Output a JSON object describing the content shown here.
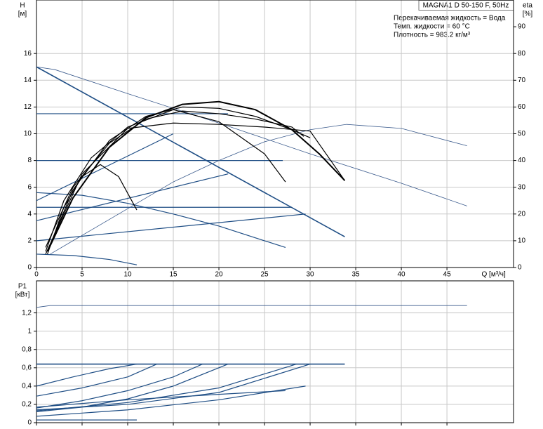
{
  "header": {
    "title": "MAGNA1 D 50-150 F, 50Hz",
    "notes": [
      "Перекачиваемая жидкость = Вода",
      "Темп. жидкости = 60 °C",
      "Плотность = 983.2 кг/м³"
    ]
  },
  "chart_data": [
    {
      "type": "line",
      "y_label": "H",
      "y_unit": "[м]",
      "y2_label": "eta",
      "y2_unit": "[%]",
      "x_label": "Q [м³/ч]",
      "grid": true,
      "xlim": [
        0,
        52.3
      ],
      "xticks": [
        0,
        5,
        10,
        15,
        20,
        25,
        30,
        35,
        40,
        45
      ],
      "ylim": [
        0,
        20
      ],
      "yticks": [
        0,
        2,
        4,
        6,
        8,
        10,
        12,
        14,
        16
      ],
      "y2lim": [
        0,
        100
      ],
      "y2ticks": [
        0,
        10,
        20,
        30,
        40,
        50,
        60,
        70,
        80,
        90
      ],
      "series": [
        {
          "color": "#1f4e85",
          "width": 1.6,
          "x": [
            0,
            33.8
          ],
          "values": [
            15,
            2.3
          ]
        },
        {
          "color": "#1f4e85",
          "width": 1.2,
          "x": [
            0,
            21
          ],
          "values": [
            11.5,
            11.5
          ]
        },
        {
          "color": "#1f4e85",
          "width": 1.2,
          "x": [
            0,
            27
          ],
          "values": [
            8,
            8
          ]
        },
        {
          "color": "#1f4e85",
          "width": 1.2,
          "x": [
            0,
            28
          ],
          "values": [
            4.5,
            4.5
          ]
        },
        {
          "color": "#1f4e85",
          "width": 1.2,
          "x": [
            0,
            15
          ],
          "values": [
            5,
            10
          ]
        },
        {
          "color": "#1f4e85",
          "width": 1.2,
          "x": [
            0,
            21
          ],
          "values": [
            3.5,
            7
          ]
        },
        {
          "color": "#1f4e85",
          "width": 1.2,
          "x": [
            0,
            29.5
          ],
          "values": [
            2,
            4
          ]
        },
        {
          "color": "#1f4e85",
          "width": 1.2,
          "x": [
            0,
            5,
            10,
            15,
            20,
            25,
            27.3
          ],
          "values": [
            5.6,
            5.4,
            4.8,
            4.0,
            3.1,
            2.0,
            1.5
          ]
        },
        {
          "color": "#1f4e85",
          "width": 1.2,
          "x": [
            0,
            4,
            8,
            11
          ],
          "values": [
            1,
            0.9,
            0.6,
            0.2
          ]
        },
        {
          "color": "#3a5a8c",
          "width": 0.8,
          "x": [
            0,
            2,
            10,
            20,
            30,
            40,
            47.2
          ],
          "values": [
            15,
            14.8,
            13,
            10.8,
            8.5,
            6.3,
            4.6
          ]
        },
        {
          "color": "#3a5a8c",
          "width": 0.8,
          "axis": "y2",
          "x": [
            1.5,
            5,
            10,
            15,
            20,
            25,
            30,
            34,
            40,
            47.2
          ],
          "values": [
            5,
            12,
            22,
            32,
            40,
            47,
            51.5,
            53.5,
            52,
            45.5
          ]
        },
        {
          "color": "#000000",
          "width": 1.2,
          "x": [
            1.2,
            3,
            5,
            7,
            9,
            11
          ],
          "values": [
            1,
            4.5,
            6.8,
            7.7,
            6.8,
            4.3
          ]
        },
        {
          "color": "#000000",
          "width": 1.2,
          "x": [
            1,
            3,
            6,
            10,
            15,
            20,
            25,
            27.3
          ],
          "values": [
            1.2,
            5,
            8.2,
            10.5,
            11.8,
            10.9,
            8.5,
            6.4
          ]
        },
        {
          "color": "#000000",
          "width": 1.2,
          "x": [
            1,
            4,
            8,
            12,
            16,
            20,
            24,
            28,
            29.3
          ],
          "values": [
            1.5,
            6,
            9.3,
            11.1,
            11.7,
            11.5,
            11.1,
            10.5,
            9.8
          ]
        },
        {
          "color": "#000000",
          "width": 1.2,
          "x": [
            1.3,
            4,
            8,
            12,
            16,
            20,
            24,
            28,
            30
          ],
          "values": [
            1.4,
            5.8,
            9.5,
            11.3,
            12,
            11.9,
            11.3,
            10.3,
            9.7
          ]
        },
        {
          "color": "#000000",
          "width": 2,
          "x": [
            1.2,
            4,
            8,
            12,
            16,
            20,
            24,
            28,
            31,
            33.8
          ],
          "values": [
            1.2,
            5.2,
            9,
            11.2,
            12.2,
            12.4,
            11.8,
            10.3,
            8.5,
            6.5
          ]
        },
        {
          "color": "#000000",
          "width": 1.2,
          "x": [
            1,
            5,
            10,
            15,
            20,
            25,
            30,
            33.8
          ],
          "values": [
            1,
            7,
            10.4,
            10.8,
            10.7,
            10.5,
            10.2,
            6.5
          ]
        }
      ]
    },
    {
      "type": "line",
      "y_label": "P1",
      "y_unit": "[кВт]",
      "grid": true,
      "xlim": [
        0,
        52.3
      ],
      "xticks": [
        0,
        5,
        10,
        15,
        20,
        25,
        30,
        35,
        40,
        45
      ],
      "ylim": [
        0,
        1.55
      ],
      "yticks": [
        0,
        {
          "value": 0.2,
          "label": "0,2"
        },
        {
          "value": 0.4,
          "label": "0,4"
        },
        {
          "value": 0.6,
          "label": "0,6"
        },
        {
          "value": 0.8,
          "label": "0,8"
        },
        {
          "value": 1,
          "label": "1"
        },
        {
          "value": 1.2,
          "label": "1,2"
        }
      ],
      "series": [
        {
          "color": "#3a5a8c",
          "width": 0.8,
          "x": [
            0,
            1.5,
            10,
            20,
            30,
            40,
            47.2
          ],
          "values": [
            1.26,
            1.28,
            1.28,
            1.28,
            1.28,
            1.28,
            1.28
          ]
        },
        {
          "color": "#1f4e85",
          "width": 1.6,
          "x": [
            0,
            33.8
          ],
          "values": [
            0.64,
            0.64
          ]
        },
        {
          "color": "#1f4e85",
          "width": 1.2,
          "x": [
            0,
            4,
            8,
            11
          ],
          "values": [
            0.4,
            0.5,
            0.59,
            0.64
          ]
        },
        {
          "color": "#1f4e85",
          "width": 1.2,
          "x": [
            0,
            5,
            10,
            13.2
          ],
          "values": [
            0.29,
            0.38,
            0.5,
            0.64
          ]
        },
        {
          "color": "#1f4e85",
          "width": 1.2,
          "x": [
            0,
            5,
            10,
            15,
            18.2
          ],
          "values": [
            0.16,
            0.24,
            0.35,
            0.5,
            0.64
          ]
        },
        {
          "color": "#1f4e85",
          "width": 1.2,
          "x": [
            0,
            5,
            10,
            15,
            21
          ],
          "values": [
            0.12,
            0.17,
            0.26,
            0.4,
            0.64
          ]
        },
        {
          "color": "#1f4e85",
          "width": 1.2,
          "x": [
            0,
            10,
            20,
            28.5
          ],
          "values": [
            0.13,
            0.22,
            0.38,
            0.64
          ]
        },
        {
          "color": "#1f4e85",
          "width": 1.2,
          "x": [
            0,
            10,
            20,
            30
          ],
          "values": [
            0.14,
            0.2,
            0.33,
            0.64
          ]
        },
        {
          "color": "#1f4e85",
          "width": 1.2,
          "x": [
            0,
            10,
            20,
            27.3
          ],
          "values": [
            0.17,
            0.25,
            0.31,
            0.35
          ]
        },
        {
          "color": "#1f4e85",
          "width": 1.2,
          "x": [
            0,
            10,
            20,
            29.5
          ],
          "values": [
            0.07,
            0.14,
            0.25,
            0.4
          ]
        },
        {
          "color": "#1f4e85",
          "width": 1.2,
          "x": [
            0,
            11
          ],
          "values": [
            0.03,
            0.03
          ]
        }
      ]
    }
  ]
}
